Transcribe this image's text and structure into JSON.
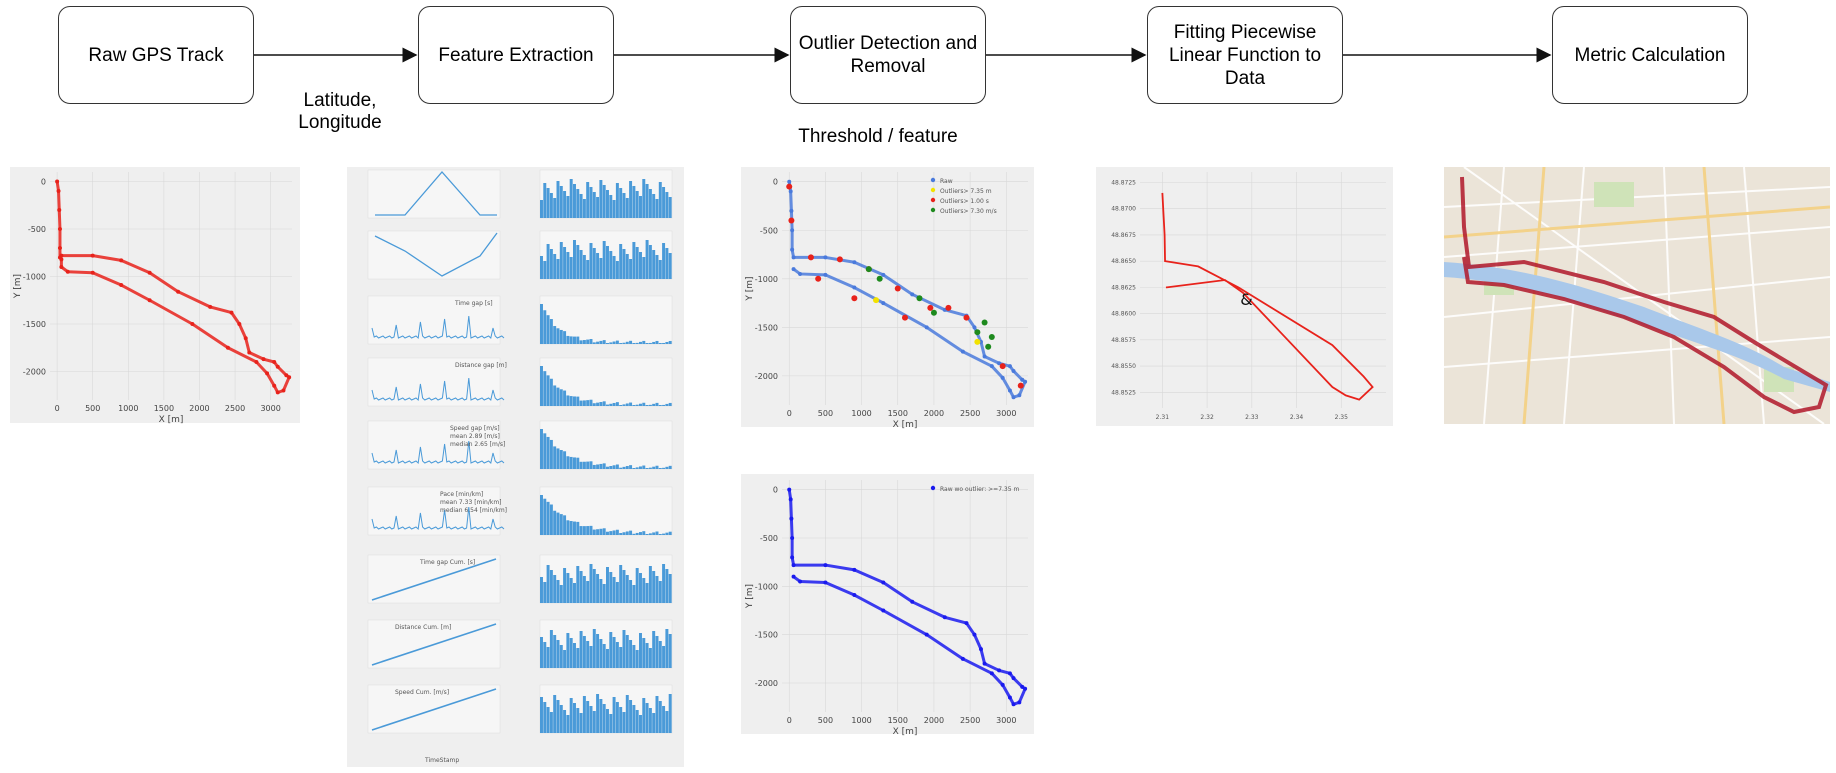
{
  "pipeline": {
    "stages": [
      {
        "label": "Raw GPS Track"
      },
      {
        "label": "Feature Extraction"
      },
      {
        "label": "Outlier Detection and Removal"
      },
      {
        "label": "Fitting  Piecewise Linear Function to Data"
      },
      {
        "label": "Metric Calculation"
      }
    ],
    "edge_labels": {
      "raw_to_feature": "Latitude, Longitude",
      "outlier": "Threshold / feature"
    }
  },
  "plots": {
    "raw_track": {
      "xlabel": "X [m]",
      "ylabel": "Y [m]",
      "xticks": [
        "0",
        "500",
        "1000",
        "1500",
        "2000",
        "2500",
        "3000"
      ],
      "yticks": [
        "0",
        "-500",
        "-1000",
        "-1500",
        "-2000"
      ]
    },
    "outlier_track": {
      "xlabel": "X [m]",
      "ylabel": "Y [m]",
      "xticks": [
        "0",
        "500",
        "1000",
        "1500",
        "2000",
        "2500",
        "3000"
      ],
      "yticks": [
        "0",
        "-500",
        "-1000",
        "-1500",
        "-2000"
      ],
      "legend": [
        "Raw",
        "Outliers> 7.35 m",
        "Outliers> 1.00 s",
        "Outliers> 7.30 m/s"
      ]
    },
    "cleaned_track": {
      "xlabel": "X [m]",
      "ylabel": "Y [m]",
      "xticks": [
        "0",
        "500",
        "1000",
        "1500",
        "2000",
        "2500",
        "3000"
      ],
      "yticks": [
        "0",
        "-500",
        "-1000",
        "-1500",
        "-2000"
      ],
      "legend": [
        "Raw wo outlier: >=7.35 m"
      ]
    },
    "fitted": {
      "xticks": [
        "2.31",
        "2.32",
        "2.33",
        "2.34",
        "2.35"
      ],
      "yticks": [
        "48.8725",
        "48.8700",
        "48.8675",
        "48.8650",
        "48.8625",
        "48.8600",
        "48.8575",
        "48.8550",
        "48.8525"
      ],
      "annotation": "&"
    },
    "features": {
      "labels": [
        "Time gap [s]",
        "Distance gap [m]",
        "Speed gap [m/s]",
        "mean 2.89 [m/s]",
        "median 2.65 [m/s]",
        "Pace [min/km]",
        "mean 7.33 [min/km]",
        "median 6.54 [min/km]",
        "Time gap Cum. [s]",
        "Distance Cum. [m]",
        "Speed Cum. [m/s]",
        "TimeStamp"
      ]
    }
  },
  "colors": {
    "track_red": "#e8221b",
    "track_blue": "#1a1aee",
    "feature_blue": "#4a9ad8",
    "outlier_yellow": "#f2e200",
    "outlier_red": "#e8221b",
    "outlier_green": "#1e8a1e",
    "panel_bg": "#efefef",
    "map_river": "#a9c8ea"
  },
  "chart_data": [
    {
      "type": "scatter",
      "name_ref": "raw_track",
      "xlim": [
        -100,
        3300
      ],
      "ylim": [
        -2300,
        100
      ],
      "xlabel": "X [m]",
      "ylabel": "Y [m]",
      "series": [
        {
          "color": "#e8221b",
          "x": [
            0,
            20,
            30,
            40,
            40,
            40,
            60,
            500,
            900,
            1300,
            1700,
            2150,
            2450,
            2560,
            2650,
            2700,
            2900,
            3050,
            3100,
            3220,
            3260,
            3180,
            3100,
            3050,
            2950,
            2800,
            2400,
            1900,
            1300,
            900,
            500,
            150,
            60,
            60
          ],
          "y": [
            0,
            -100,
            -300,
            -500,
            -700,
            -800,
            -780,
            -780,
            -830,
            -960,
            -1160,
            -1320,
            -1380,
            -1500,
            -1650,
            -1800,
            -1870,
            -1900,
            -1950,
            -2040,
            -2060,
            -2200,
            -2220,
            -2150,
            -2020,
            -1900,
            -1750,
            -1500,
            -1250,
            -1090,
            -960,
            -950,
            -900,
            -820
          ]
        }
      ]
    },
    {
      "type": "scatter",
      "name_ref": "outlier_track",
      "xlim": [
        -100,
        3300
      ],
      "ylim": [
        -2300,
        100
      ],
      "xlabel": "X [m]",
      "ylabel": "Y [m]",
      "series": [
        {
          "name": "Raw",
          "color": "#4a7adc",
          "x": [
            0,
            20,
            30,
            40,
            40,
            60,
            500,
            900,
            1300,
            1700,
            2150,
            2450,
            2560,
            2650,
            2700,
            2900,
            3050,
            3100,
            3220,
            3260,
            3180,
            3100,
            3050,
            2950,
            2800,
            2400,
            1900,
            1300,
            900,
            500,
            150,
            60
          ],
          "y": [
            0,
            -100,
            -300,
            -500,
            -700,
            -780,
            -780,
            -830,
            -960,
            -1160,
            -1320,
            -1380,
            -1500,
            -1650,
            -1800,
            -1870,
            -1900,
            -1950,
            -2040,
            -2060,
            -2200,
            -2220,
            -2150,
            -2020,
            -1900,
            -1750,
            -1500,
            -1250,
            -1090,
            -960,
            -950,
            -900
          ]
        },
        {
          "name": "Outliers> 7.35 m",
          "color": "#f2e200",
          "x": [
            1200,
            2600
          ],
          "y": [
            -1220,
            -1650
          ]
        },
        {
          "name": "Outliers> 1.00 s",
          "color": "#e8221b",
          "x": [
            0,
            30,
            300,
            700,
            1100,
            1500,
            1950,
            2450,
            2950,
            3200,
            2200,
            1600,
            900,
            400
          ],
          "y": [
            -50,
            -400,
            -780,
            -800,
            -900,
            -1100,
            -1300,
            -1400,
            -1900,
            -2100,
            -1300,
            -1400,
            -1200,
            -1000
          ]
        },
        {
          "name": "Outliers> 7.30 m/s",
          "color": "#1e8a1e",
          "x": [
            1100,
            1250,
            1800,
            2000,
            2600,
            2700,
            2750,
            2800
          ],
          "y": [
            -900,
            -1000,
            -1200,
            -1350,
            -1550,
            -1450,
            -1700,
            -1600
          ]
        }
      ]
    },
    {
      "type": "scatter",
      "name_ref": "cleaned_track",
      "xlim": [
        -100,
        3300
      ],
      "ylim": [
        -2300,
        100
      ],
      "xlabel": "X [m]",
      "ylabel": "Y [m]",
      "series": [
        {
          "name": "Raw wo outlier: >=7.35 m",
          "color": "#1a1aee",
          "x": [
            0,
            20,
            30,
            40,
            40,
            60,
            500,
            900,
            1300,
            1700,
            2150,
            2450,
            2560,
            2650,
            2700,
            2900,
            3050,
            3100,
            3220,
            3260,
            3180,
            3100,
            3050,
            2950,
            2800,
            2400,
            1900,
            1300,
            900,
            500,
            150,
            60
          ],
          "y": [
            0,
            -100,
            -300,
            -500,
            -700,
            -780,
            -780,
            -830,
            -960,
            -1160,
            -1320,
            -1380,
            -1500,
            -1650,
            -1800,
            -1870,
            -1900,
            -1950,
            -2040,
            -2060,
            -2200,
            -2220,
            -2150,
            -2020,
            -1900,
            -1750,
            -1500,
            -1250,
            -1090,
            -960,
            -950,
            -900
          ]
        }
      ]
    },
    {
      "type": "line",
      "name_ref": "fitted",
      "xlim": [
        2.305,
        2.36
      ],
      "ylim": [
        48.851,
        48.8735
      ],
      "series": [
        {
          "color": "#e8221b",
          "x": [
            2.31,
            2.3105,
            2.3106,
            2.318,
            2.327,
            2.348,
            2.355,
            2.357,
            2.354,
            2.351,
            2.348,
            2.328,
            2.324,
            2.311,
            2.3108
          ],
          "y": [
            48.8715,
            48.8675,
            48.865,
            48.8645,
            48.8625,
            48.857,
            48.854,
            48.853,
            48.8518,
            48.8522,
            48.853,
            48.862,
            48.8632,
            48.8625,
            48.8625
          ]
        }
      ]
    }
  ]
}
